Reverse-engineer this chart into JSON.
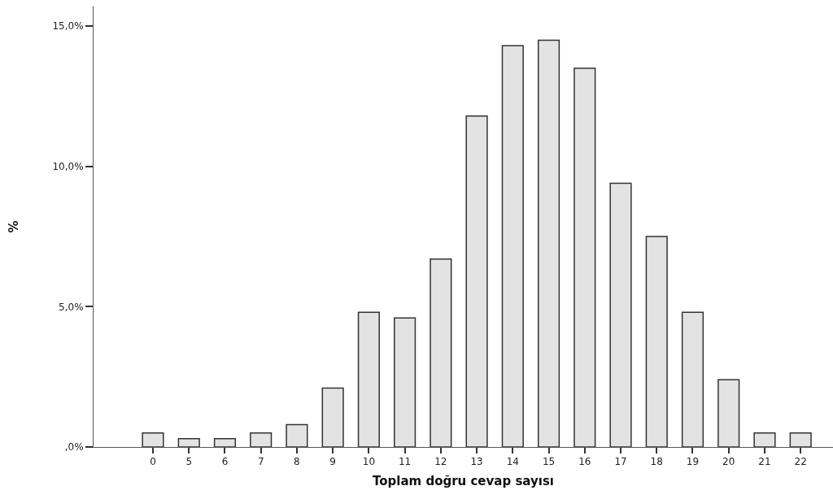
{
  "chart_data": {
    "type": "bar",
    "xlabel": "Toplam doğru cevap sayısı",
    "ylabel": "%",
    "categories": [
      "0",
      "5",
      "6",
      "7",
      "8",
      "9",
      "10",
      "11",
      "12",
      "13",
      "14",
      "15",
      "16",
      "17",
      "18",
      "19",
      "20",
      "21",
      "22"
    ],
    "values": [
      0.5,
      0.3,
      0.3,
      0.5,
      0.8,
      2.1,
      4.8,
      4.6,
      6.7,
      11.8,
      14.3,
      14.5,
      13.5,
      9.4,
      7.5,
      4.8,
      2.4,
      0.5,
      0.5
    ],
    "color": "#e3e3e3",
    "ylim": [
      0,
      15.7
    ],
    "yticks": [
      {
        "value": 0,
        "label": ",0%"
      },
      {
        "value": 5,
        "label": "5,0%"
      },
      {
        "value": 10,
        "label": "10,0%"
      },
      {
        "value": 15,
        "label": "15,0%"
      }
    ],
    "grid": false,
    "legend": false
  }
}
